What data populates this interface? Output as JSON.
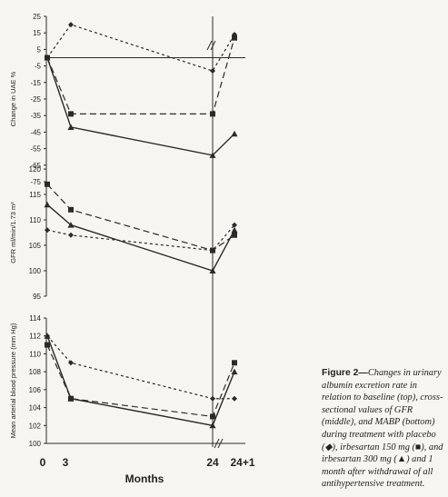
{
  "chart_data": [
    {
      "type": "line",
      "panel": "top",
      "ylabel": "Change in UAE %",
      "ylim": [
        -75,
        25
      ],
      "yticks": [
        25,
        15,
        5,
        -5,
        -15,
        -25,
        -35,
        -45,
        -55,
        -65,
        -75
      ],
      "x": [
        1,
        3,
        24,
        25
      ],
      "series": [
        {
          "marker": "diamond",
          "dash": "dotted",
          "values": [
            0,
            20,
            -8,
            14
          ]
        },
        {
          "marker": "square",
          "dash": "dashed",
          "values": [
            0,
            -34,
            -34,
            12
          ]
        },
        {
          "marker": "triangle",
          "dash": "solid",
          "values": [
            0,
            -42,
            -59,
            -46
          ]
        }
      ]
    },
    {
      "type": "line",
      "panel": "middle",
      "ylabel": "GFR ml/min/1.73 m²",
      "ylim": [
        95,
        120
      ],
      "yticks": [
        120,
        115,
        110,
        105,
        100,
        95
      ],
      "x": [
        1,
        3,
        24,
        25
      ],
      "series": [
        {
          "marker": "diamond",
          "dash": "dotted",
          "values": [
            108,
            107,
            104,
            109
          ]
        },
        {
          "marker": "square",
          "dash": "dashed",
          "values": [
            117,
            112,
            104,
            107
          ]
        },
        {
          "marker": "triangle",
          "dash": "solid",
          "values": [
            113,
            109,
            100,
            108
          ]
        }
      ]
    },
    {
      "type": "line",
      "panel": "bottom",
      "ylabel": "Mean arterial blood pressure (mm Hg)",
      "ylim": [
        100,
        114
      ],
      "yticks": [
        114,
        112,
        110,
        108,
        106,
        104,
        102,
        100
      ],
      "x": [
        1,
        3,
        24,
        25
      ],
      "series": [
        {
          "marker": "diamond",
          "dash": "dotted",
          "values": [
            112,
            109,
            105,
            105
          ]
        },
        {
          "marker": "square",
          "dash": "dashed",
          "values": [
            111,
            105,
            103,
            109
          ]
        },
        {
          "marker": "triangle",
          "dash": "solid",
          "values": [
            112,
            105,
            102,
            108
          ]
        }
      ]
    }
  ],
  "axis": {
    "xlabel": "Months",
    "xticks": [
      "0",
      "3",
      "24",
      "24+1"
    ]
  },
  "caption": {
    "label": "Figure 2—",
    "text": "Changes in urinary albumin excretion rate in relation to baseline (top), cross-sectional values of GFR (middle), and MABP (bottom) during treatment with placebo (◆), irbesartan 150 mg (■), and irbesartan 300 mg (▲) and 1 month after withdrawal of all antihypertensive treatment."
  },
  "colors": {
    "ink": "#2a2a2a",
    "paper": "#f7f5f1"
  }
}
